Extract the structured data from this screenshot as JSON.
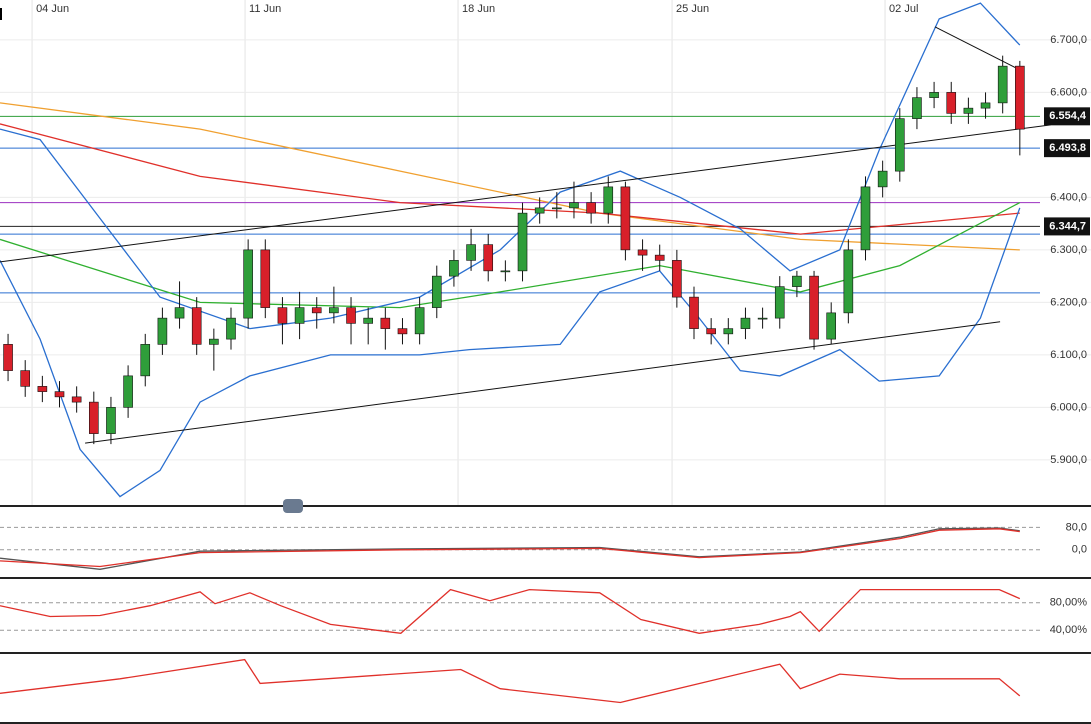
{
  "chart_data": {
    "type": "candlestick",
    "xlim": [
      -0.47,
      63.15
    ],
    "xticks": [
      {
        "value": 1.4,
        "label": "04 Jun"
      },
      {
        "value": 13.82,
        "label": "11 Jun"
      },
      {
        "value": 26.24,
        "label": "18 Jun"
      },
      {
        "value": 38.72,
        "label": "25 Jun"
      },
      {
        "value": 51.14,
        "label": "02 Jul"
      }
    ],
    "ylim": [
      5.814,
      6.776
    ],
    "yticks": [
      {
        "value": 5.9,
        "label": "5.900,0"
      },
      {
        "value": 6.0,
        "label": "6.000,0"
      },
      {
        "value": 6.1,
        "label": "6.100,0"
      },
      {
        "value": 6.2,
        "label": "6.200,0"
      },
      {
        "value": 6.3,
        "label": "6.300,0"
      },
      {
        "value": 6.4,
        "label": "6.400,0"
      },
      {
        "value": 6.6,
        "label": "6.600,0"
      },
      {
        "value": 6.7,
        "label": "6.700,0"
      }
    ],
    "up_color": "#2f9e3a",
    "down_color": "#d8202a",
    "open": [
      6.12,
      6.07,
      6.04,
      6.03,
      6.02,
      6.01,
      5.95,
      6.0,
      6.06,
      6.12,
      6.17,
      6.19,
      6.12,
      6.13,
      6.17,
      6.3,
      6.19,
      6.16,
      6.19,
      6.18,
      6.19,
      6.16,
      6.17,
      6.15,
      6.14,
      6.19,
      6.25,
      6.28,
      6.31,
      6.26,
      6.26,
      6.37,
      6.38,
      6.38,
      6.39,
      6.37,
      6.42,
      6.3,
      6.29,
      6.28,
      6.21,
      6.15,
      6.14,
      6.15,
      6.17,
      6.17,
      6.23,
      6.25,
      6.13,
      6.18,
      6.3,
      6.42,
      6.45,
      6.55,
      6.59,
      6.6,
      6.56,
      6.57,
      6.58,
      6.65
    ],
    "high": [
      6.14,
      6.09,
      6.06,
      6.05,
      6.04,
      6.03,
      6.02,
      6.08,
      6.14,
      6.19,
      6.24,
      6.21,
      6.15,
      6.19,
      6.32,
      6.32,
      6.21,
      6.22,
      6.21,
      6.23,
      6.21,
      6.19,
      6.19,
      6.17,
      6.21,
      6.27,
      6.3,
      6.34,
      6.33,
      6.28,
      6.39,
      6.4,
      6.41,
      6.43,
      6.41,
      6.44,
      6.43,
      6.32,
      6.31,
      6.3,
      6.23,
      6.17,
      6.17,
      6.19,
      6.19,
      6.25,
      6.26,
      6.26,
      6.2,
      6.32,
      6.44,
      6.47,
      6.57,
      6.61,
      6.62,
      6.62,
      6.59,
      6.6,
      6.67,
      6.66
    ],
    "low": [
      6.05,
      6.02,
      6.01,
      6.0,
      5.99,
      5.93,
      5.93,
      5.98,
      6.04,
      6.1,
      6.15,
      6.1,
      6.07,
      6.11,
      6.15,
      6.17,
      6.12,
      6.13,
      6.15,
      6.16,
      6.12,
      6.12,
      6.11,
      6.12,
      6.12,
      6.17,
      6.23,
      6.26,
      6.24,
      6.24,
      6.24,
      6.35,
      6.36,
      6.36,
      6.35,
      6.35,
      6.28,
      6.26,
      6.26,
      6.19,
      6.13,
      6.12,
      6.12,
      6.13,
      6.15,
      6.15,
      6.21,
      6.11,
      6.12,
      6.16,
      6.28,
      6.4,
      6.43,
      6.53,
      6.57,
      6.54,
      6.54,
      6.55,
      6.56,
      6.48
    ],
    "close": [
      6.07,
      6.04,
      6.03,
      6.02,
      6.01,
      5.95,
      6.0,
      6.06,
      6.12,
      6.17,
      6.19,
      6.12,
      6.13,
      6.17,
      6.3,
      6.19,
      6.16,
      6.19,
      6.18,
      6.19,
      6.16,
      6.17,
      6.15,
      6.14,
      6.19,
      6.25,
      6.28,
      6.31,
      6.26,
      6.26,
      6.37,
      6.38,
      6.38,
      6.39,
      6.37,
      6.42,
      6.3,
      6.29,
      6.28,
      6.21,
      6.15,
      6.14,
      6.15,
      6.17,
      6.17,
      6.23,
      6.25,
      6.13,
      6.18,
      6.3,
      6.42,
      6.45,
      6.55,
      6.59,
      6.6,
      6.56,
      6.57,
      6.58,
      6.65,
      6.53
    ],
    "lines": [
      {
        "color": "#f0a030",
        "x": [
          -0.47,
          11.2,
          22.86,
          34.5,
          46.2,
          59.0
        ],
        "values": [
          6.58,
          6.53,
          6.45,
          6.37,
          6.32,
          6.3
        ]
      },
      {
        "color": "#e0302a",
        "x": [
          -0.47,
          11.2,
          22.86,
          34.5,
          46.2,
          59.0
        ],
        "values": [
          6.54,
          6.44,
          6.39,
          6.37,
          6.33,
          6.37
        ]
      },
      {
        "color": "#30b030",
        "x": [
          -0.47,
          11.2,
          22.86,
          28.7,
          38.0,
          46.2,
          52.0,
          59.0
        ],
        "values": [
          6.32,
          6.2,
          6.19,
          6.22,
          6.27,
          6.22,
          6.27,
          6.39
        ]
      },
      {
        "color": "#2a6fd0",
        "x": [
          -0.47,
          1.87,
          5.36,
          8.86,
          14.1,
          18.8,
          24.0,
          28.7,
          32.2,
          35.7,
          39.2,
          42.7,
          45.6,
          48.5,
          50.8,
          54.3,
          56.7,
          59.0
        ],
        "values": [
          6.53,
          6.51,
          6.36,
          6.21,
          6.15,
          6.17,
          6.21,
          6.3,
          6.41,
          6.45,
          6.4,
          6.34,
          6.26,
          6.3,
          6.49,
          6.74,
          6.77,
          6.69
        ]
      },
      {
        "color": "#2a6fd0",
        "x": [
          -0.47,
          1.87,
          4.2,
          6.53,
          8.86,
          11.2,
          14.1,
          18.8,
          24.0,
          26.9,
          32.2,
          34.5,
          38.0,
          40.3,
          42.7,
          45.0,
          48.5,
          50.8,
          54.3,
          56.7,
          59.0
        ],
        "values": [
          6.28,
          6.13,
          5.92,
          5.83,
          5.88,
          6.01,
          6.06,
          6.1,
          6.1,
          6.11,
          6.12,
          6.22,
          6.26,
          6.17,
          6.07,
          6.06,
          6.11,
          6.05,
          6.06,
          6.17,
          6.38
        ]
      }
    ],
    "levels": [
      {
        "value": 6.5544,
        "color": "#2f9e3a",
        "label": "6.554,4"
      },
      {
        "value": 6.4938,
        "color": "#2a6fd0",
        "label": "6.493,8"
      },
      {
        "value": 6.39,
        "color": "#9b30c0"
      },
      {
        "value": 6.3447,
        "color": "#222222",
        "label": "6.344,7"
      },
      {
        "value": 6.33,
        "color": "#2a6fd0"
      },
      {
        "value": 6.218,
        "color": "#2a6fd0"
      }
    ],
    "trendlines": [
      {
        "x": [
          -0.47,
          60.8
        ],
        "values": [
          6.277,
          6.538
        ]
      },
      {
        "x": [
          4.49,
          57.85
        ],
        "values": [
          5.932,
          6.163
        ]
      },
      {
        "x": [
          54.05,
          59.0
        ],
        "values": [
          6.725,
          6.643
        ]
      }
    ],
    "panels": [
      {
        "type": "line",
        "ylim": [
          -93.9,
          149.6
        ],
        "yticks": [
          {
            "value": 80,
            "label": "80,0"
          },
          {
            "value": 0,
            "label": "0,0"
          }
        ],
        "series": [
          {
            "color": "#555555",
            "x": [
              -0.47,
              5.36,
              11.2,
              22.9,
              34.5,
              40.3,
              46.2,
              52.0,
              54.3,
              57.8,
              59.0
            ],
            "values": [
              -30,
              -70,
              -5,
              3,
              8,
              -25,
              -8,
              45,
              75,
              78,
              68
            ]
          },
          {
            "color": "#e0302a",
            "x": [
              -0.47,
              5.36,
              11.2,
              22.9,
              34.5,
              40.3,
              46.2,
              52.0,
              54.3,
              57.8,
              59.0
            ],
            "values": [
              -40,
              -60,
              -10,
              0,
              5,
              -28,
              -10,
              40,
              70,
              75,
              65
            ]
          }
        ]
      },
      {
        "type": "line",
        "ylim": [
          10,
          112.9
        ],
        "yticks": [
          {
            "value": 80,
            "label": "80,00%"
          },
          {
            "value": 40,
            "label": "40,00%"
          }
        ],
        "series": [
          {
            "color": "#e0302a",
            "x": [
              -0.47,
              2.45,
              5.36,
              8.28,
              11.2,
              12.07,
              14.1,
              15.9,
              18.8,
              22.9,
              25.8,
              28.1,
              30.4,
              34.5,
              36.9,
              40.3,
              43.8,
              45.6,
              46.2,
              47.3,
              49.7,
              57.8,
              59.0
            ],
            "values": [
              75.7,
              60,
              61.4,
              75.7,
              95.7,
              78.6,
              94.3,
              75.7,
              48.6,
              35.7,
              99,
              82.9,
              99,
              94.3,
              55.7,
              35.7,
              48.6,
              60,
              67,
              38.6,
              99,
              99,
              86
            ]
          }
        ]
      },
      {
        "type": "line",
        "ylim": [
          0,
          100
        ],
        "yticks": [],
        "series": [
          {
            "color": "#e0302a",
            "x": [
              -0.47,
              6.53,
              13.8,
              14.7,
              26.4,
              28.7,
              35.7,
              45.0,
              46.2,
              48.5,
              52.0,
              57.8,
              59.0
            ],
            "values": [
              42,
              64,
              93,
              57,
              78,
              49,
              28,
              86,
              49,
              71,
              64,
              64,
              38
            ]
          }
        ]
      }
    ]
  }
}
